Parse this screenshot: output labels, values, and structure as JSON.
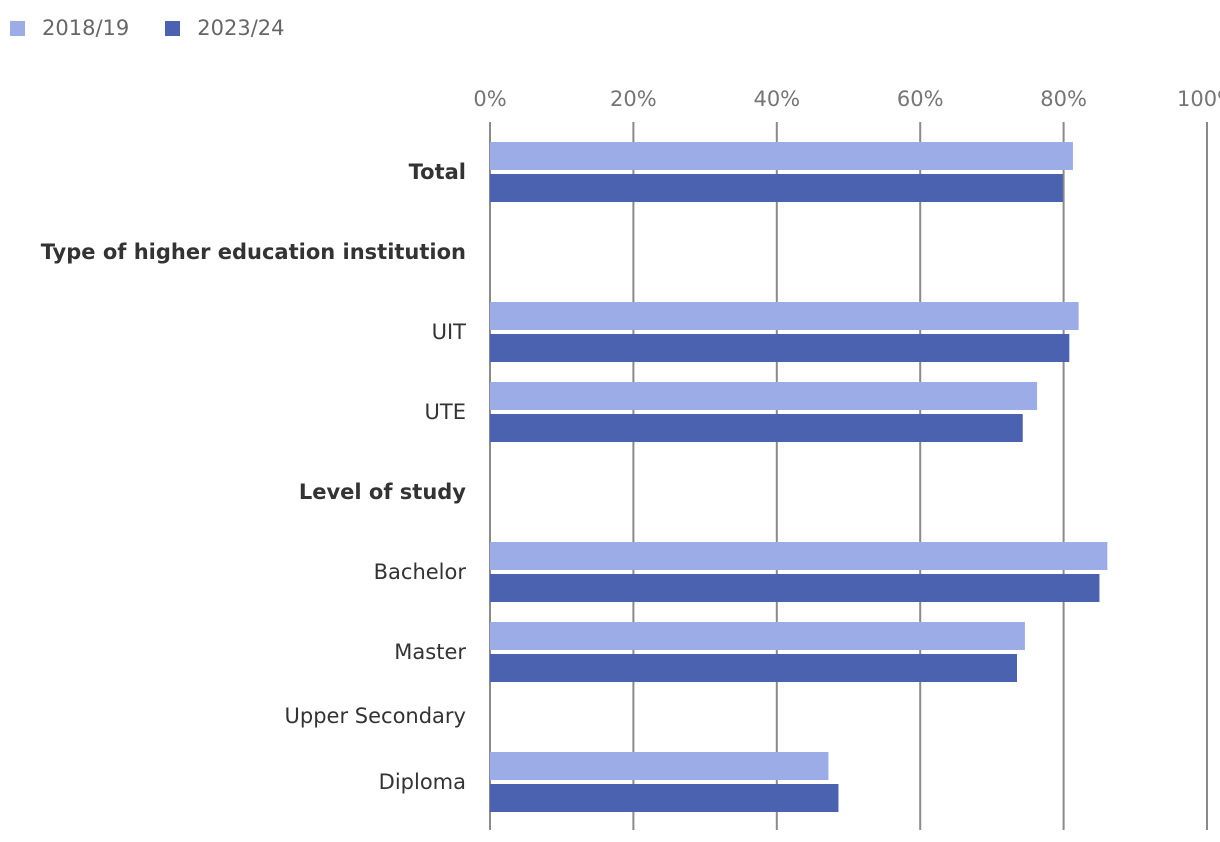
{
  "chart_data": {
    "type": "bar",
    "orientation": "horizontal",
    "title": "",
    "xlabel": "",
    "ylabel": "",
    "xlim": [
      0,
      100
    ],
    "x_ticks": [
      "0%",
      "20%",
      "40%",
      "60%",
      "80%",
      "100%"
    ],
    "grid": true,
    "legend_position": "top-left",
    "categories": [
      "Total",
      "Type of higher education institution",
      "UIT",
      "UTE",
      "Level of study",
      "Bachelor",
      "Master",
      "Upper Secondary",
      "Diploma"
    ],
    "bold_categories": [
      "Total",
      "Type of higher education institution",
      "Level of study"
    ],
    "series": [
      {
        "name": "2018/19",
        "color": "#9BACE6",
        "values": [
          81.3,
          null,
          82.1,
          76.3,
          null,
          86.1,
          74.6,
          null,
          47.2
        ]
      },
      {
        "name": "2023/24",
        "color": "#4A62B0",
        "values": [
          79.9,
          null,
          80.8,
          74.3,
          null,
          85.0,
          73.5,
          null,
          48.6
        ]
      }
    ]
  }
}
